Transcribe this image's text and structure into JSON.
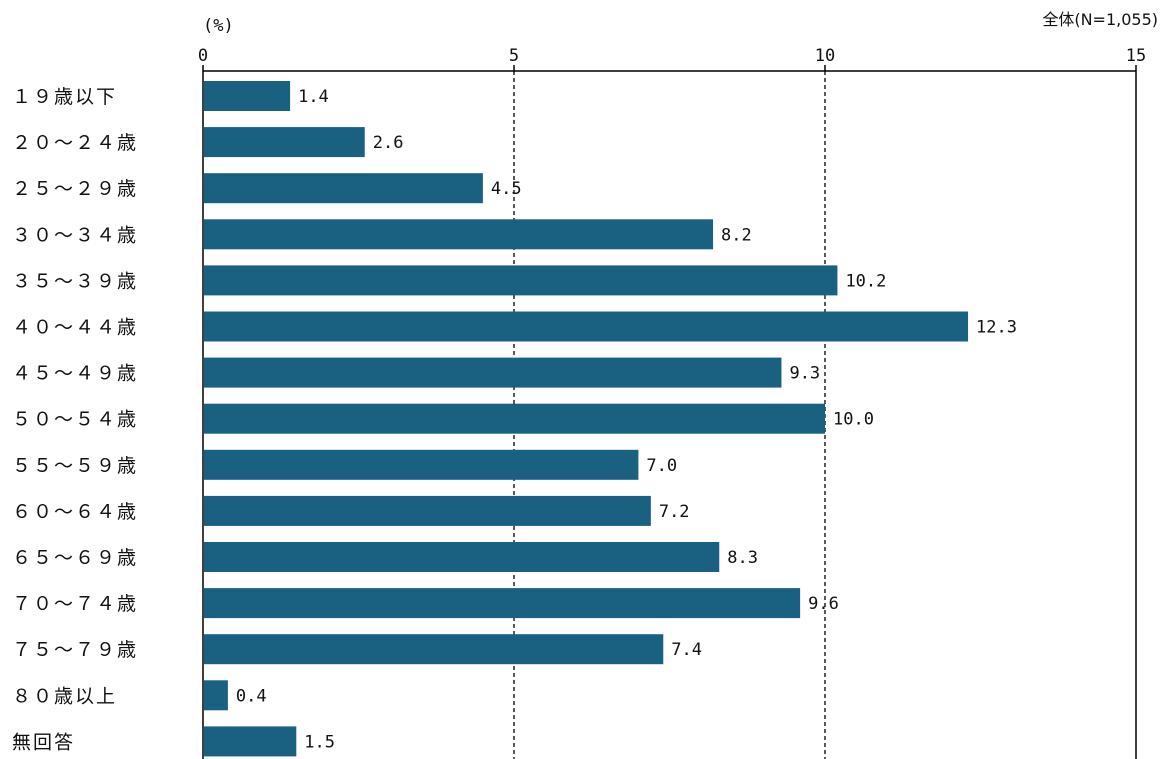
{
  "chart_data": {
    "type": "bar",
    "orientation": "horizontal",
    "unit_label": "(%)",
    "sample_label": "全体(N=1,055)",
    "xlim": [
      0,
      15
    ],
    "ticks": [
      0,
      5,
      10,
      15
    ],
    "grid": "dashed vertical lines at 5 and 10",
    "bar_color": "#1a6080",
    "categories": [
      "１９歳以下",
      "２０～２４歳",
      "２５～２９歳",
      "３０～３４歳",
      "３５～３９歳",
      "４０～４４歳",
      "４５～４９歳",
      "５０～５４歳",
      "５５～５９歳",
      "６０～６４歳",
      "６５～６９歳",
      "７０～７４歳",
      "７５～７９歳",
      "８０歳以上",
      "無回答"
    ],
    "values": [
      1.4,
      2.6,
      4.5,
      8.2,
      10.2,
      12.3,
      9.3,
      10.0,
      7.0,
      7.2,
      8.3,
      9.6,
      7.4,
      0.4,
      1.5
    ],
    "value_labels": [
      "1.4",
      "2.6",
      "4.5",
      "8.2",
      "10.2",
      "12.3",
      "9.3",
      "10.0",
      "7.0",
      "7.2",
      "8.3",
      "9.6",
      "7.4",
      "0.4",
      "1.5"
    ]
  }
}
